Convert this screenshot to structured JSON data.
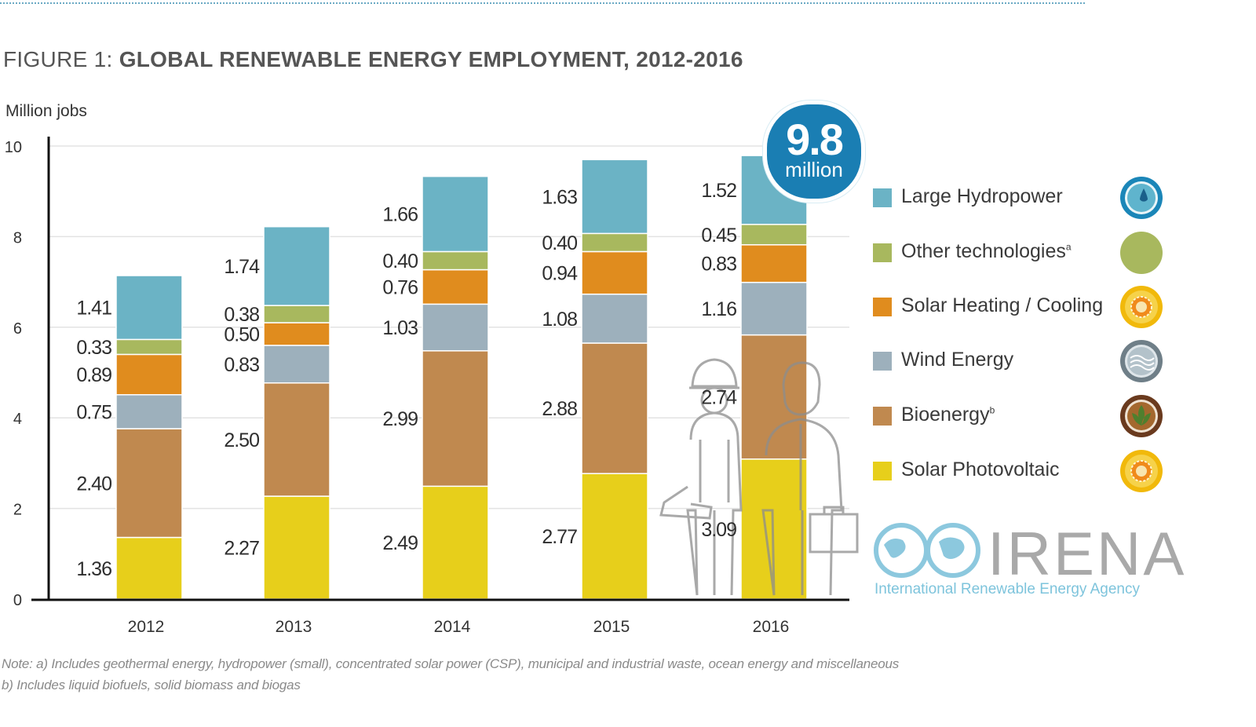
{
  "figure": {
    "title_prefix": "FIGURE 1: ",
    "title_main": "GLOBAL RENEWABLE ENERGY EMPLOYMENT, 2012-2016",
    "unit_label": "Million jobs"
  },
  "badge": {
    "value": "9.8",
    "unit": "million"
  },
  "legend": [
    {
      "label": "Large Hydropower",
      "sup": "",
      "color": "#6bb3c5",
      "icon": "water-drop-icon"
    },
    {
      "label": "Other technologies",
      "sup": "a",
      "color": "#a8b85e",
      "icon": "green-circle-icon"
    },
    {
      "label": "Solar Heating / Cooling",
      "sup": "",
      "color": "#e08c1e",
      "icon": "sun-icon"
    },
    {
      "label": "Wind Energy",
      "sup": "",
      "color": "#9db0bc",
      "icon": "wind-icon"
    },
    {
      "label": "Bioenergy",
      "sup": "b",
      "color": "#c0894f",
      "icon": "leaf-icon"
    },
    {
      "label": "Solar Photovoltaic",
      "sup": "",
      "color": "#e7cf1b",
      "icon": "sun-icon"
    }
  ],
  "logo": {
    "name": "IRENA",
    "subtitle": "International Renewable Energy Agency"
  },
  "notes": {
    "line1": "Note: a) Includes geothermal energy, hydropower (small), concentrated solar power (CSP), municipal and industrial waste, ocean energy and miscellaneous",
    "line2": "b) Includes liquid biofuels, solid biomass and biogas"
  },
  "chart_data": {
    "type": "bar",
    "stacked": true,
    "title": "GLOBAL RENEWABLE ENERGY EMPLOYMENT, 2012-2016",
    "ylabel": "Million jobs",
    "xlabel": "",
    "ylim": [
      0,
      10
    ],
    "yticks": [
      0,
      2,
      4,
      6,
      8,
      10
    ],
    "grid": true,
    "legend_position": "right",
    "categories": [
      "2012",
      "2013",
      "2014",
      "2015",
      "2016"
    ],
    "series": [
      {
        "name": "Solar Photovoltaic",
        "color": "#e7cf1b",
        "values": [
          1.36,
          2.27,
          2.49,
          2.77,
          3.09
        ]
      },
      {
        "name": "Bioenergy",
        "color": "#c0894f",
        "values": [
          2.4,
          2.5,
          2.99,
          2.88,
          2.74
        ]
      },
      {
        "name": "Wind Energy",
        "color": "#9db0bc",
        "values": [
          0.75,
          0.83,
          1.03,
          1.08,
          1.16
        ]
      },
      {
        "name": "Solar Heating / Cooling",
        "color": "#e08c1e",
        "values": [
          0.89,
          0.5,
          0.76,
          0.94,
          0.83
        ]
      },
      {
        "name": "Other technologies",
        "color": "#a8b85e",
        "values": [
          0.33,
          0.38,
          0.4,
          0.4,
          0.45
        ]
      },
      {
        "name": "Large Hydropower",
        "color": "#6bb3c5",
        "values": [
          1.41,
          1.74,
          1.66,
          1.63,
          1.52
        ]
      }
    ],
    "data_labels": [
      [
        "1.36",
        "2.27",
        "2.49",
        "2.77",
        "3.09"
      ],
      [
        "2.40",
        "2.50",
        "2.99",
        "2.88",
        "2.74"
      ],
      [
        "0.75",
        "0.83",
        "1.03",
        "1.08",
        "1.16"
      ],
      [
        "0.89",
        "0.50",
        "0.76",
        "0.94",
        "0.83"
      ],
      [
        "0.33",
        "0.38",
        "0.40",
        "0.40",
        "0.45"
      ],
      [
        "1.41",
        "1.74",
        "1.66",
        "1.63",
        "1.52"
      ]
    ]
  }
}
